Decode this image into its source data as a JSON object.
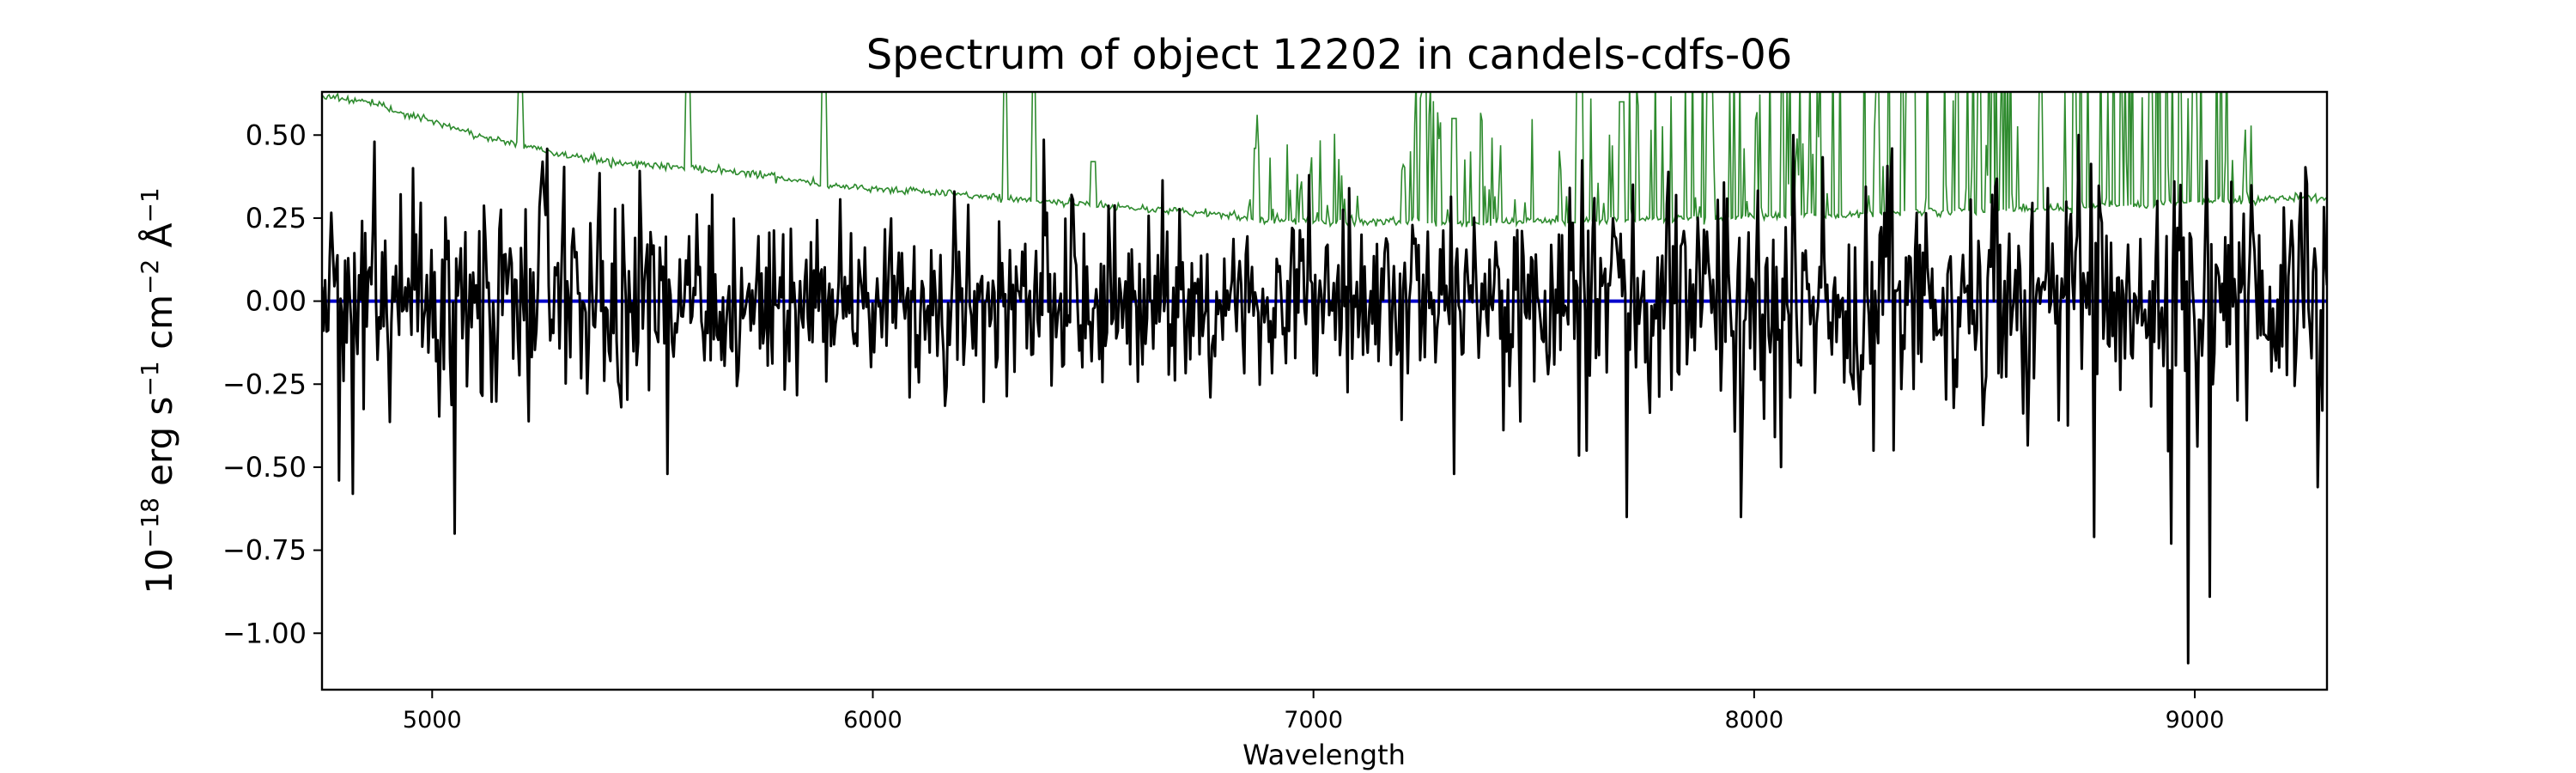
{
  "chart_data": {
    "type": "line",
    "title": "Spectrum of object 12202 in candels-cdfs-06",
    "xlabel": "Wavelength",
    "ylabel": {
      "base": "10",
      "exp1": "−18",
      "erg": " erg s",
      "exp2": "−1",
      "cm": " cm",
      "exp3": "−2",
      "ang": " Å",
      "exp4": "−1"
    },
    "xlim": [
      4750,
      9300
    ],
    "ylim": [
      -1.17,
      0.63
    ],
    "x_ticks": [
      5000,
      6000,
      7000,
      8000,
      9000
    ],
    "x_tick_labels": [
      "5000",
      "6000",
      "7000",
      "8000",
      "9000"
    ],
    "y_ticks": [
      0.5,
      0.25,
      0.0,
      -0.25,
      -0.5,
      -0.75,
      -1.0
    ],
    "y_tick_labels": [
      "0.50",
      "0.25",
      "0.00",
      "−0.25",
      "−0.50",
      "−0.75",
      "−1.00"
    ],
    "grid": false,
    "series": [
      {
        "role": "error",
        "color": "#2e8b2e",
        "x": [
          4750,
          4800,
          4850,
          4900,
          5000,
          5100,
          5200,
          5300,
          5400,
          5500,
          5600,
          5700,
          5800,
          5900,
          6000,
          6100,
          6200,
          6300,
          6400,
          6500,
          6600,
          6700,
          6800,
          6850,
          6900,
          7000,
          7100,
          7200,
          7300,
          7400,
          7500,
          7600,
          7700,
          7800,
          7900,
          8000,
          8100,
          8200,
          8300,
          8400,
          8500,
          8600,
          8700,
          8800,
          8900,
          9000,
          9100,
          9200,
          9300
        ],
        "base": [
          0.62,
          0.61,
          0.6,
          0.58,
          0.54,
          0.5,
          0.47,
          0.44,
          0.42,
          0.41,
          0.4,
          0.39,
          0.37,
          0.35,
          0.34,
          0.33,
          0.32,
          0.31,
          0.3,
          0.29,
          0.28,
          0.27,
          0.26,
          0.25,
          0.245,
          0.24,
          0.24,
          0.24,
          0.235,
          0.235,
          0.24,
          0.24,
          0.245,
          0.25,
          0.25,
          0.255,
          0.26,
          0.26,
          0.265,
          0.27,
          0.27,
          0.28,
          0.28,
          0.29,
          0.29,
          0.3,
          0.3,
          0.31,
          0.31
        ],
        "spikes": [
          [
            5200,
            0.63
          ],
          [
            5580,
            0.63
          ],
          [
            5890,
            0.63
          ],
          [
            6300,
            0.63
          ],
          [
            6365,
            0.63
          ],
          [
            6500,
            0.42
          ],
          [
            6870,
            0.46
          ],
          [
            7250,
            0.63
          ],
          [
            7320,
            0.55
          ],
          [
            7600,
            0.63
          ],
          [
            7700,
            0.6
          ],
          [
            7900,
            0.63
          ],
          [
            8280,
            0.63
          ],
          [
            8350,
            0.63
          ],
          [
            8650,
            0.63
          ],
          [
            8900,
            0.63
          ],
          [
            9000,
            0.63
          ]
        ],
        "noisy_regions": [
          [
            6850,
            7100,
            0.15
          ],
          [
            7200,
            7500,
            0.2
          ],
          [
            7550,
            8200,
            0.25
          ],
          [
            8250,
            8600,
            0.35
          ],
          [
            8700,
            9150,
            0.35
          ]
        ]
      },
      {
        "role": "flux",
        "color": "#000000",
        "x_range": [
          4750,
          9300
        ],
        "points": 1300,
        "sigma": 0.17,
        "seed": 12202,
        "dips": [
          [
            5050,
            -0.7
          ],
          [
            5535,
            -0.52
          ],
          [
            7320,
            -0.52
          ],
          [
            7710,
            -0.65
          ],
          [
            7620,
            -0.45
          ],
          [
            7970,
            -0.65
          ],
          [
            8270,
            -0.45
          ],
          [
            8770,
            -0.71
          ],
          [
            8945,
            -0.73
          ],
          [
            8985,
            -1.09
          ],
          [
            9035,
            -0.89
          ],
          [
            9280,
            -0.56
          ],
          [
            4820,
            -0.58
          ],
          [
            4790,
            -0.54
          ]
        ],
        "peaks": [
          [
            4870,
            0.48
          ],
          [
            4955,
            0.4
          ],
          [
            5250,
            0.42
          ],
          [
            5635,
            0.32
          ],
          [
            6185,
            0.33
          ],
          [
            6215,
            0.29
          ],
          [
            6450,
            0.32
          ],
          [
            7080,
            0.34
          ],
          [
            8665,
            0.34
          ],
          [
            8310,
            0.36
          ],
          [
            8540,
            0.32
          ]
        ]
      },
      {
        "role": "zero",
        "color": "#0000cc",
        "x": [
          4750,
          9300
        ],
        "y": [
          0,
          0
        ]
      }
    ]
  }
}
